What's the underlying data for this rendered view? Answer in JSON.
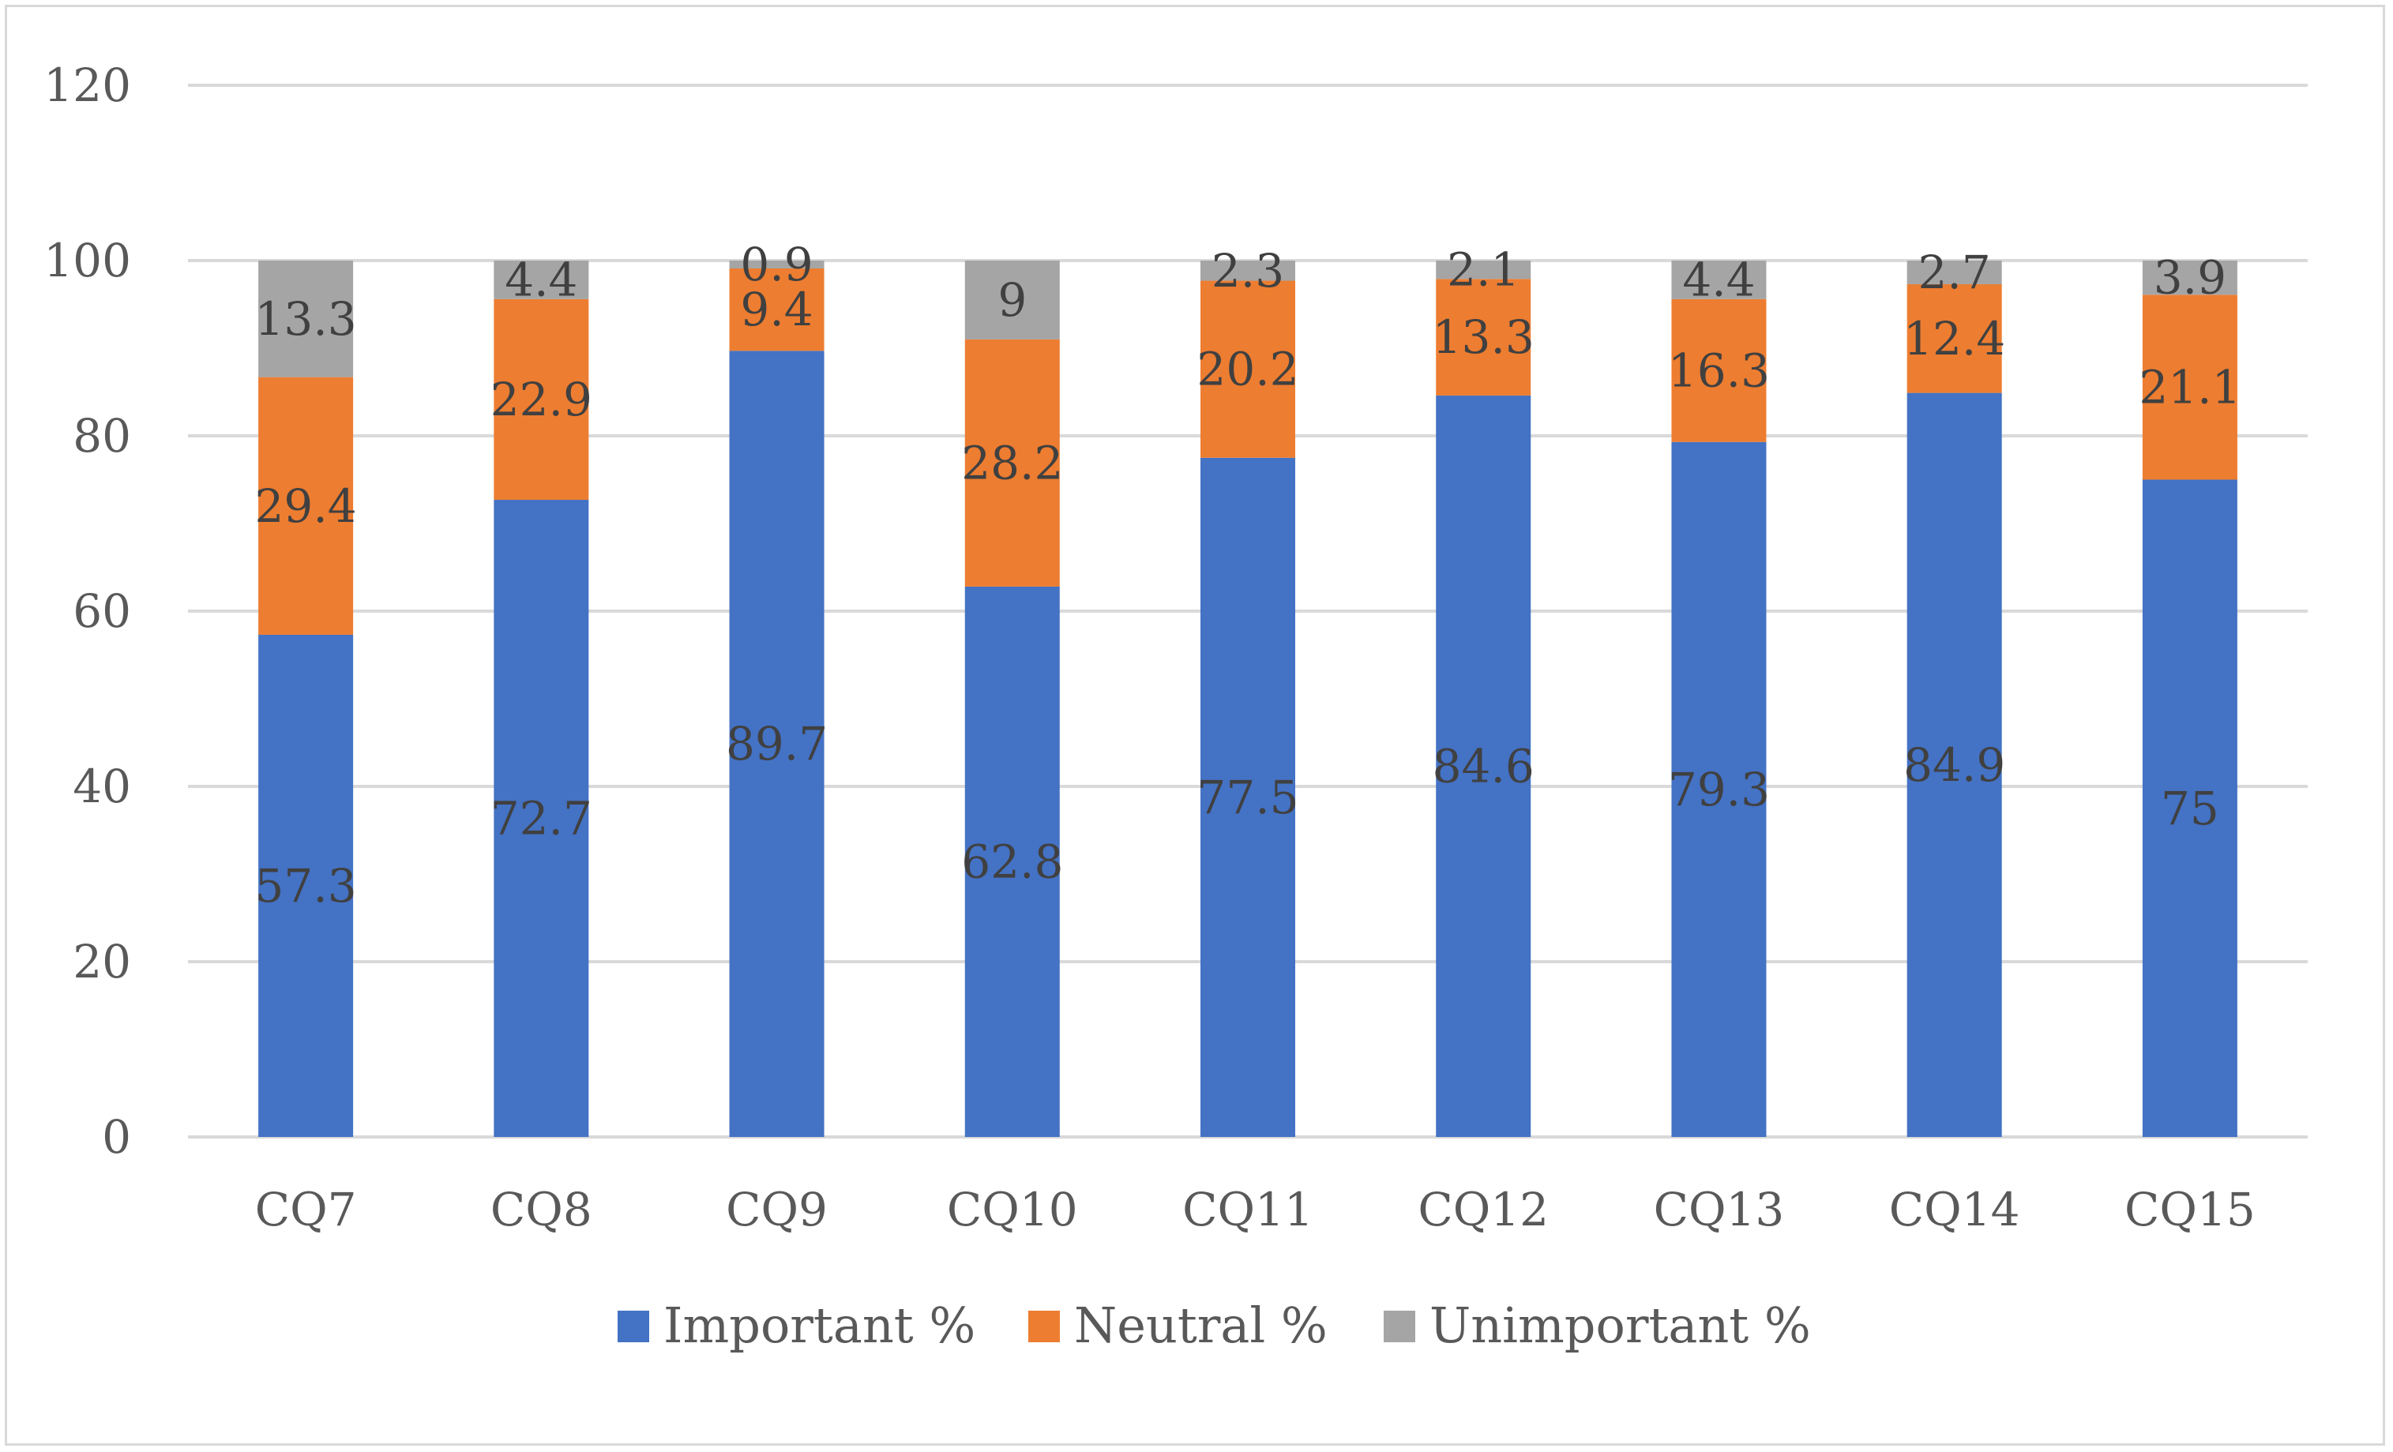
{
  "chart_data": {
    "type": "bar",
    "stacked": true,
    "title": "",
    "xlabel": "",
    "ylabel": "",
    "categories": [
      "CQ7",
      "CQ8",
      "CQ9",
      "CQ10",
      "CQ11",
      "CQ12",
      "CQ13",
      "CQ14",
      "CQ15"
    ],
    "series": [
      {
        "name": "Important %",
        "color": "#4472c4",
        "values": [
          57.3,
          72.7,
          89.7,
          62.8,
          77.5,
          84.6,
          79.3,
          84.9,
          75
        ],
        "labels": [
          "57.3",
          "72.7",
          "89.7",
          "62.8",
          "77.5",
          "84.6",
          "79.3",
          "84.9",
          "75"
        ]
      },
      {
        "name": "Neutral %",
        "color": "#ed7d31",
        "values": [
          29.4,
          22.9,
          9.4,
          28.2,
          20.2,
          13.3,
          16.3,
          12.4,
          21.1
        ],
        "labels": [
          "29.4",
          "22.9",
          "9.4",
          "28.2",
          "20.2",
          "13.3",
          "16.3",
          "12.4",
          "21.1"
        ]
      },
      {
        "name": "Unimportant %",
        "color": "#a5a5a5",
        "values": [
          13.3,
          4.4,
          0.9,
          9,
          2.3,
          2.1,
          4.4,
          2.7,
          3.9
        ],
        "labels": [
          "13.3",
          "4.4",
          "0.9",
          "9",
          "2.3",
          "2.1",
          "4.4",
          "2.7",
          "3.9"
        ]
      }
    ],
    "ylim": [
      0,
      120
    ],
    "yticks": [
      "0",
      "20",
      "40",
      "60",
      "80",
      "100",
      "120"
    ],
    "ytick_values": [
      0,
      20,
      40,
      60,
      80,
      100,
      120
    ],
    "grid": true,
    "legend_position": "bottom",
    "gridline_color": "#d9d9d9"
  }
}
